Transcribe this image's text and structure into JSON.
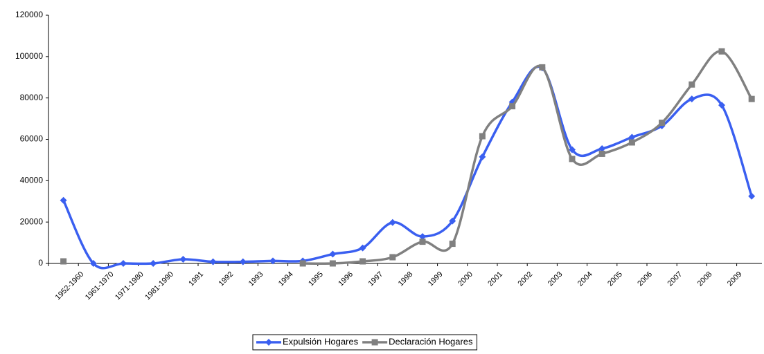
{
  "chart_data": {
    "type": "line",
    "categories": [
      null,
      "1952-1960",
      "1961-1970",
      "1971-1980",
      "1981-1990",
      "1991",
      "1992",
      "1993",
      "1994",
      "1995",
      "1996",
      "1997",
      "1998",
      "1999",
      "2000",
      "2001",
      "2002",
      "2003",
      "2004",
      "2005",
      "2006",
      "2007",
      "2008",
      "2009"
    ],
    "series": [
      {
        "name": "Expulsión Hogares",
        "color": "#3a5ff0",
        "marker": "diamond",
        "values": [
          30500,
          0,
          0,
          0,
          2000,
          800,
          800,
          1200,
          1200,
          4500,
          7500,
          19800,
          13000,
          20500,
          51500,
          78000,
          94500,
          55000,
          55500,
          61000,
          66500,
          79500,
          76500,
          32500
        ]
      },
      {
        "name": "Declaración Hogares",
        "color": "#808080",
        "marker": "square",
        "values": [
          1000,
          null,
          null,
          null,
          null,
          null,
          null,
          null,
          0,
          0,
          1000,
          3000,
          10500,
          9500,
          61500,
          76000,
          94800,
          50500,
          53000,
          58500,
          68000,
          86500,
          102500,
          79500
        ]
      }
    ],
    "ylim": [
      0,
      120000
    ],
    "yticks": [
      0,
      20000,
      40000,
      60000,
      80000,
      100000,
      120000
    ],
    "legend": "bottom",
    "smooth": true
  }
}
